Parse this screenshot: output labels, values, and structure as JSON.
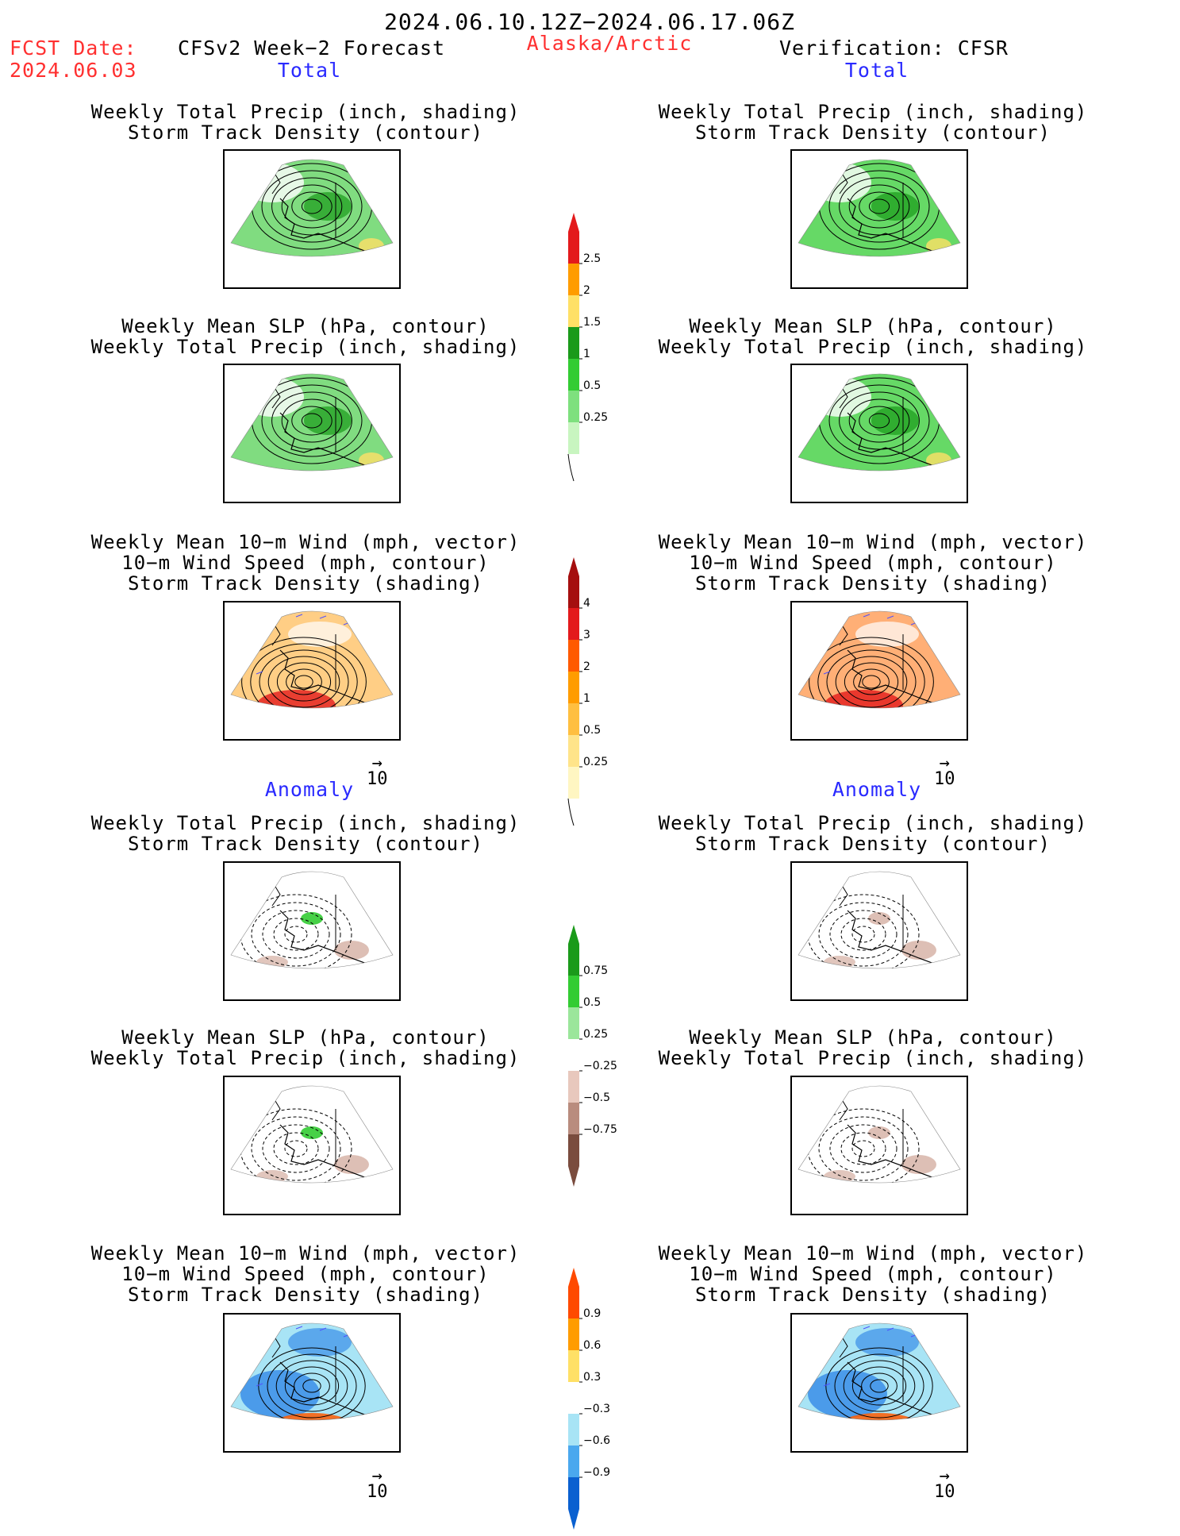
{
  "header": {
    "period": "2024.06.10.12Z−2024.06.17.06Z",
    "fcst_label": "FCST Date:",
    "fcst_date": "2024.06.03",
    "model": "CFSv2 Week−2 Forecast",
    "region": "Alaska/Arctic",
    "verification": "Verification: CFSR"
  },
  "sections": {
    "total": "Total",
    "anomaly": "Anomaly"
  },
  "titles": {
    "precip_track": [
      "Weekly Total Precip (inch, shading)",
      "Storm Track Density (contour)"
    ],
    "slp_precip": [
      "Weekly Mean SLP (hPa, contour)",
      "Weekly Total Precip (inch, shading)"
    ],
    "wind_track": [
      "Weekly Mean 10−m Wind (mph, vector)",
      "10−m Wind Speed (mph, contour)",
      "Storm Track Density (shading)"
    ]
  },
  "vector_reference": "10",
  "colorbars": {
    "precip_total": {
      "labels": [
        "2.5",
        "2",
        "1.5",
        "1",
        "0.5",
        "0.25"
      ],
      "colors": [
        "#e31a1c",
        "#ff9c00",
        "#ffe066",
        "#1a9a1a",
        "#33cc33",
        "#7ee07e",
        "#c8f5c0"
      ]
    },
    "track_total": {
      "labels": [
        "4",
        "3",
        "2",
        "1",
        "0.5",
        "0.25"
      ],
      "colors": [
        "#a50f0f",
        "#e31a1c",
        "#ff5a00",
        "#ff9c00",
        "#ffbf40",
        "#ffe48a",
        "#fff6c2"
      ]
    },
    "precip_anom": {
      "labels": [
        "0.75",
        "0.5",
        "0.25",
        "−0.25",
        "−0.5",
        "−0.75"
      ],
      "colors": [
        "#1a9a1a",
        "#33cc33",
        "#9be69b",
        "#ffffff",
        "#e8c8bd",
        "#b98c7e",
        "#7a4c3e"
      ]
    },
    "track_anom": {
      "labels": [
        "0.9",
        "0.6",
        "0.3",
        "−0.3",
        "−0.6",
        "−0.9"
      ],
      "colors": [
        "#ff4a00",
        "#ff9c00",
        "#ffe066",
        "#ffffff",
        "#a8e4f5",
        "#4aa8ee",
        "#0a60d0"
      ]
    }
  },
  "map_panels": {
    "fill": {
      "precip_total_fc": "#55d055",
      "precip_total_ver": "#33cc33",
      "track_total_fc": "#ffae33",
      "track_total_ver": "#ff7a1a",
      "precip_anom_pos": "#33cc33",
      "precip_anom_neg": "#d9b8ad",
      "track_anom_neg": "#3b8ee8",
      "track_anom_pos": "#ff5a00"
    }
  }
}
